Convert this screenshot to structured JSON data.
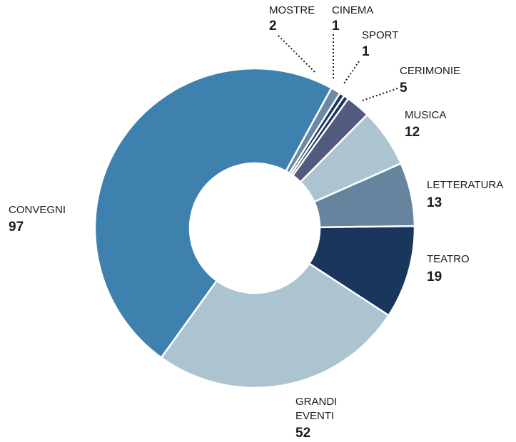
{
  "chart_data": {
    "type": "pie",
    "donut": true,
    "title": "",
    "slices": [
      {
        "label": "CONVEGNI",
        "value": 97,
        "color": "#3f81ae"
      },
      {
        "label": "MOSTRE",
        "value": 2,
        "color": "#6c88a3"
      },
      {
        "label": "CINEMA",
        "value": 1,
        "color": "#1b365d"
      },
      {
        "label": "SPORT",
        "value": 1,
        "color": "#1b365d"
      },
      {
        "label": "CERIMONIE",
        "value": 5,
        "color": "#525b7e"
      },
      {
        "label": "MUSICA",
        "value": 12,
        "color": "#abc4d0"
      },
      {
        "label": "LETTERATURA",
        "value": 13,
        "color": "#67849f"
      },
      {
        "label": "TEATRO",
        "value": 19,
        "color": "#1b365d"
      },
      {
        "label": "GRANDI EVENTI",
        "value": 52,
        "color": "#abc4d0"
      }
    ]
  }
}
